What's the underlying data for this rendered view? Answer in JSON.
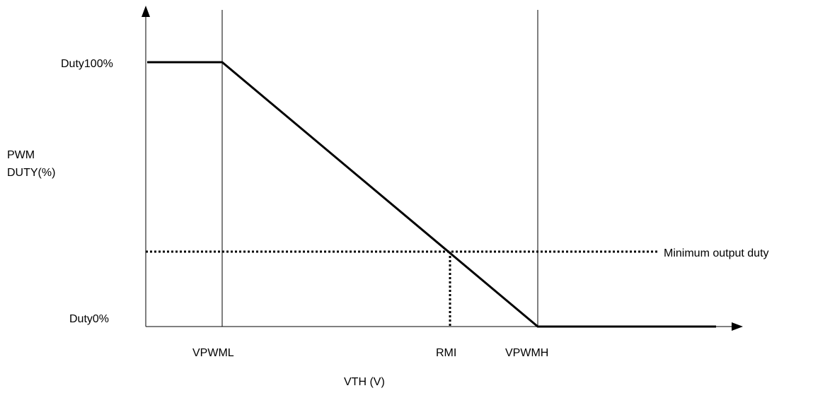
{
  "labels": {
    "duty_high": "Duty100%",
    "duty_low": "Duty0%",
    "y_axis_line1": "PWM",
    "y_axis_line2": "DUTY(%)",
    "x_axis": "VTH (V)",
    "vpwml": "VPWML",
    "rmi": "RMI",
    "vpwmh": "VPWMH",
    "min_duty": "Minimum output duty"
  },
  "colors": {
    "line": "#000000",
    "background": "#ffffff"
  }
}
